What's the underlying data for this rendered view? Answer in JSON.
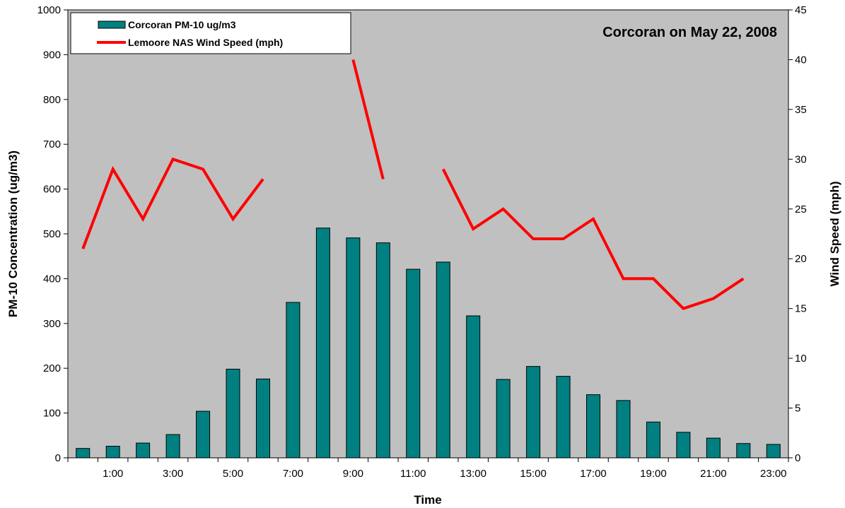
{
  "chart_data": {
    "type": "bar",
    "title": "Corcoran on May 22, 2008",
    "xlabel": "Time",
    "ylabel": "PM-10 Concentration (ug/m3)",
    "y2label": "Wind Speed (mph)",
    "ylim": [
      0,
      1000
    ],
    "y2lim": [
      0,
      45
    ],
    "yticks": [
      "0",
      "100",
      "200",
      "300",
      "400",
      "500",
      "600",
      "700",
      "800",
      "900",
      "1000"
    ],
    "y2ticks": [
      "0",
      "5",
      "10",
      "15",
      "20",
      "25",
      "30",
      "35",
      "40",
      "45"
    ],
    "xtick_labels": [
      "1:00",
      "3:00",
      "5:00",
      "7:00",
      "9:00",
      "11:00",
      "13:00",
      "15:00",
      "17:00",
      "19:00",
      "21:00",
      "23:00"
    ],
    "x": [
      0,
      1,
      2,
      3,
      4,
      5,
      6,
      7,
      8,
      9,
      10,
      11,
      12,
      13,
      14,
      15,
      16,
      17,
      18,
      19,
      20,
      21,
      22,
      23
    ],
    "grid": false,
    "legend_position": "top-left",
    "series": [
      {
        "name": "Corcoran PM-10 ug/m3",
        "type": "bar",
        "axis": "left",
        "color": "#008080",
        "values": [
          21,
          26,
          33,
          52,
          104,
          198,
          176,
          347,
          513,
          491,
          480,
          421,
          437,
          317,
          175,
          204,
          182,
          141,
          128,
          80,
          57,
          44,
          32,
          30
        ]
      },
      {
        "name": "Lemoore NAS Wind Speed (mph)",
        "type": "line",
        "axis": "right",
        "color": "#ff0000",
        "values": [
          21,
          29,
          24,
          30,
          29,
          24,
          28,
          null,
          null,
          40,
          28,
          null,
          29,
          23,
          25,
          22,
          22,
          24,
          18,
          18,
          15,
          16,
          18,
          null
        ]
      }
    ],
    "plot_background": "#c0c0c0"
  }
}
